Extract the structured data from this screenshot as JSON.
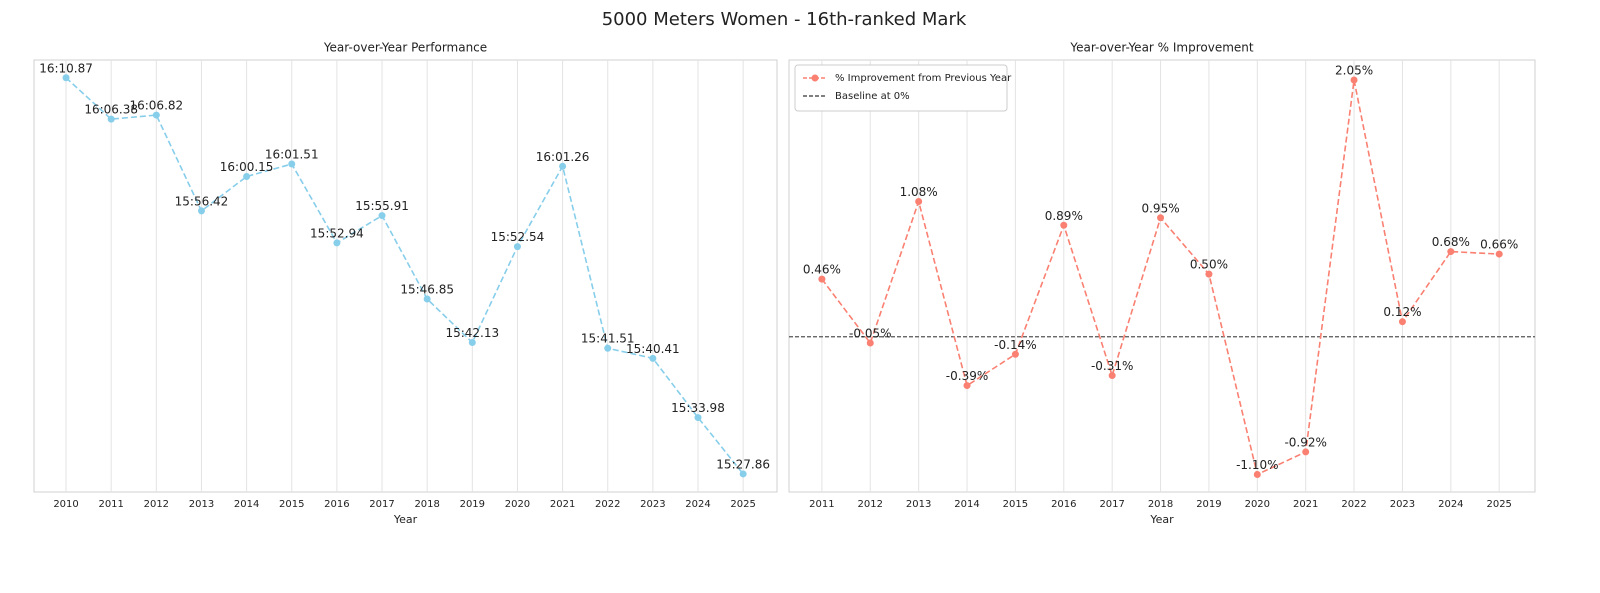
{
  "title": "5000 Meters Women - 16th-ranked Mark",
  "chart_data": [
    {
      "type": "line",
      "title": "Year-over-Year Performance",
      "xlabel": "Year",
      "x": [
        2010,
        2011,
        2012,
        2013,
        2014,
        2015,
        2016,
        2017,
        2018,
        2019,
        2020,
        2021,
        2022,
        2023,
        2024,
        2025
      ],
      "values": [
        970.87,
        966.38,
        966.82,
        956.42,
        960.15,
        961.51,
        952.94,
        955.91,
        946.85,
        942.13,
        952.54,
        961.26,
        941.51,
        940.41,
        933.98,
        927.86
      ],
      "value_labels": [
        "16:10.87",
        "16:06.38",
        "16:06.82",
        "15:56.42",
        "16:00.15",
        "16:01.51",
        "15:52.94",
        "15:55.91",
        "15:46.85",
        "15:42.13",
        "15:52.54",
        "16:01.26",
        "15:41.51",
        "15:40.41",
        "15:33.98",
        "15:27.86"
      ],
      "color": "#87ceeb",
      "xlim": [
        2009.29,
        2025.75
      ],
      "xticks": [
        2010,
        2011,
        2012,
        2013,
        2014,
        2015,
        2016,
        2017,
        2018,
        2019,
        2020,
        2021,
        2022,
        2023,
        2024,
        2025
      ],
      "ylim": [
        925.9,
        972.8
      ],
      "grid": true
    },
    {
      "type": "line",
      "title": "Year-over-Year % Improvement",
      "xlabel": "Year",
      "x": [
        2011,
        2012,
        2013,
        2014,
        2015,
        2016,
        2017,
        2018,
        2019,
        2020,
        2021,
        2022,
        2023,
        2024,
        2025
      ],
      "series": [
        {
          "name": "% Improvement from Previous Year",
          "color": "#fa8072",
          "values": [
            0.46,
            -0.05,
            1.08,
            -0.39,
            -0.14,
            0.89,
            -0.31,
            0.95,
            0.5,
            -1.1,
            -0.92,
            2.05,
            0.12,
            0.68,
            0.66
          ],
          "value_labels": [
            "0.46%",
            "-0.05%",
            "1.08%",
            "-0.39%",
            "-0.14%",
            "0.89%",
            "-0.31%",
            "0.95%",
            "0.50%",
            "-1.10%",
            "-0.92%",
            "2.05%",
            "0.12%",
            "0.68%",
            "0.66%"
          ]
        }
      ],
      "hlines": [
        {
          "name": "Baseline at 0%",
          "value": 0,
          "color": "#555555"
        }
      ],
      "xlim": [
        2010.32,
        2025.74
      ],
      "xticks": [
        2011,
        2012,
        2013,
        2014,
        2015,
        2016,
        2017,
        2018,
        2019,
        2020,
        2021,
        2022,
        2023,
        2024,
        2025
      ],
      "ylim": [
        -1.24,
        2.21
      ],
      "grid": true,
      "legend": "upper-left"
    }
  ]
}
